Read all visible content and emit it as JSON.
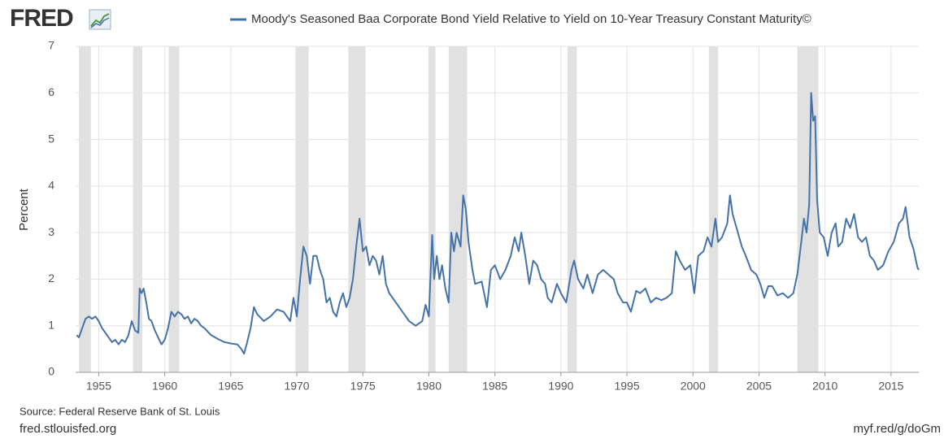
{
  "header": {
    "logo": "FRED"
  },
  "chart_data": {
    "type": "line",
    "title": "Moody's Seasoned Baa Corporate Bond Yield Relative to Yield on 10-Year Treasury Constant Maturity©",
    "y_label": "Percent",
    "x": [
      1953.33,
      1953.5,
      1953.75,
      1954.0,
      1954.25,
      1954.5,
      1954.75,
      1955.0,
      1955.25,
      1955.5,
      1955.75,
      1956.0,
      1956.25,
      1956.5,
      1956.75,
      1957.0,
      1957.25,
      1957.5,
      1957.75,
      1958.0,
      1958.1,
      1958.25,
      1958.4,
      1958.6,
      1958.8,
      1959.0,
      1959.25,
      1959.5,
      1959.75,
      1960.0,
      1960.25,
      1960.5,
      1960.75,
      1961.0,
      1961.25,
      1961.5,
      1961.75,
      1962.0,
      1962.25,
      1962.5,
      1962.75,
      1963.0,
      1963.5,
      1964.0,
      1964.5,
      1965.0,
      1965.5,
      1965.8,
      1966.0,
      1966.2,
      1966.5,
      1966.75,
      1967.0,
      1967.5,
      1968.0,
      1968.5,
      1969.0,
      1969.5,
      1969.75,
      1970.0,
      1970.25,
      1970.5,
      1970.75,
      1971.0,
      1971.25,
      1971.5,
      1971.75,
      1972.0,
      1972.25,
      1972.5,
      1972.75,
      1973.0,
      1973.25,
      1973.5,
      1973.75,
      1974.0,
      1974.25,
      1974.5,
      1974.75,
      1975.0,
      1975.25,
      1975.5,
      1975.75,
      1976.0,
      1976.25,
      1976.5,
      1976.75,
      1977.0,
      1977.5,
      1978.0,
      1978.5,
      1979.0,
      1979.5,
      1979.75,
      1980.0,
      1980.25,
      1980.4,
      1980.6,
      1980.8,
      1981.0,
      1981.25,
      1981.5,
      1981.7,
      1981.9,
      1982.1,
      1982.4,
      1982.6,
      1982.8,
      1983.0,
      1983.3,
      1983.5,
      1984.0,
      1984.4,
      1984.7,
      1985.0,
      1985.4,
      1985.8,
      1986.2,
      1986.5,
      1986.8,
      1987.0,
      1987.3,
      1987.6,
      1987.9,
      1988.2,
      1988.5,
      1988.8,
      1989.0,
      1989.3,
      1989.7,
      1990.0,
      1990.4,
      1990.8,
      1991.0,
      1991.3,
      1991.7,
      1992.0,
      1992.4,
      1992.8,
      1993.2,
      1993.6,
      1994.0,
      1994.3,
      1994.7,
      1995.0,
      1995.3,
      1995.7,
      1996.0,
      1996.4,
      1996.8,
      1997.2,
      1997.6,
      1998.0,
      1998.4,
      1998.7,
      1999.0,
      1999.4,
      1999.8,
      2000.1,
      2000.4,
      2000.8,
      2001.1,
      2001.4,
      2001.7,
      2001.9,
      2002.2,
      2002.6,
      2002.8,
      2003.0,
      2003.4,
      2003.7,
      2004.0,
      2004.4,
      2004.8,
      2005.1,
      2005.4,
      2005.7,
      2006.0,
      2006.4,
      2006.8,
      2007.2,
      2007.6,
      2007.9,
      2008.2,
      2008.4,
      2008.6,
      2008.8,
      2008.95,
      2009.1,
      2009.25,
      2009.4,
      2009.6,
      2009.9,
      2010.2,
      2010.5,
      2010.8,
      2011.0,
      2011.3,
      2011.6,
      2011.9,
      2012.2,
      2012.5,
      2012.8,
      2013.1,
      2013.4,
      2013.7,
      2014.0,
      2014.4,
      2014.8,
      2015.2,
      2015.6,
      2015.9,
      2016.1,
      2016.4,
      2016.7,
      2017.0,
      2017.1
    ],
    "series": [
      {
        "name": "Moody's Seasoned Baa Corporate Bond Yield Relative to Yield on 10-Year Treasury Constant Maturity©",
        "color": "#4572a7",
        "values": [
          0.8,
          0.75,
          0.95,
          1.15,
          1.2,
          1.15,
          1.2,
          1.1,
          0.95,
          0.85,
          0.75,
          0.65,
          0.7,
          0.6,
          0.7,
          0.65,
          0.8,
          1.1,
          0.9,
          0.85,
          1.8,
          1.7,
          1.8,
          1.5,
          1.15,
          1.1,
          0.9,
          0.75,
          0.6,
          0.7,
          0.95,
          1.3,
          1.2,
          1.3,
          1.25,
          1.15,
          1.2,
          1.05,
          1.15,
          1.1,
          1.0,
          0.95,
          0.8,
          0.72,
          0.65,
          0.62,
          0.6,
          0.5,
          0.4,
          0.6,
          0.95,
          1.4,
          1.25,
          1.1,
          1.2,
          1.35,
          1.3,
          1.1,
          1.6,
          1.2,
          2.0,
          2.7,
          2.5,
          1.9,
          2.5,
          2.5,
          2.2,
          2.0,
          1.5,
          1.6,
          1.3,
          1.2,
          1.5,
          1.7,
          1.4,
          1.6,
          2.0,
          2.7,
          3.3,
          2.6,
          2.7,
          2.3,
          2.5,
          2.4,
          2.1,
          2.5,
          1.9,
          1.7,
          1.5,
          1.3,
          1.1,
          1.0,
          1.1,
          1.45,
          1.2,
          2.95,
          2.0,
          2.5,
          2.0,
          2.3,
          1.8,
          1.5,
          3.0,
          2.6,
          3.0,
          2.7,
          3.8,
          3.5,
          2.8,
          2.2,
          1.9,
          1.95,
          1.4,
          2.2,
          2.3,
          2.0,
          2.2,
          2.5,
          2.9,
          2.6,
          3.0,
          2.5,
          1.9,
          2.4,
          2.3,
          2.0,
          1.9,
          1.6,
          1.5,
          1.9,
          1.7,
          1.5,
          2.2,
          2.4,
          2.0,
          1.8,
          2.1,
          1.7,
          2.1,
          2.2,
          2.1,
          2.0,
          1.7,
          1.5,
          1.5,
          1.3,
          1.75,
          1.7,
          1.8,
          1.5,
          1.6,
          1.55,
          1.6,
          1.7,
          2.6,
          2.4,
          2.2,
          2.3,
          1.7,
          2.5,
          2.6,
          2.9,
          2.7,
          3.3,
          2.8,
          2.9,
          3.2,
          3.8,
          3.4,
          3.0,
          2.7,
          2.5,
          2.2,
          2.1,
          1.9,
          1.6,
          1.85,
          1.85,
          1.65,
          1.7,
          1.6,
          1.7,
          2.1,
          2.8,
          3.3,
          3.0,
          3.6,
          6.0,
          5.4,
          5.5,
          3.7,
          3.0,
          2.9,
          2.5,
          3.0,
          3.2,
          2.7,
          2.8,
          3.3,
          3.1,
          3.4,
          2.9,
          2.8,
          2.9,
          2.5,
          2.4,
          2.2,
          2.3,
          2.6,
          2.8,
          3.2,
          3.3,
          3.55,
          2.9,
          2.65,
          2.25,
          2.2
        ]
      }
    ],
    "recessions": [
      [
        1953.5,
        1954.4
      ],
      [
        1957.6,
        1958.3
      ],
      [
        1960.3,
        1961.1
      ],
      [
        1969.9,
        1970.9
      ],
      [
        1973.9,
        1975.2
      ],
      [
        1980.0,
        1980.5
      ],
      [
        1981.5,
        1982.9
      ],
      [
        1990.5,
        1991.2
      ],
      [
        2001.2,
        2001.9
      ],
      [
        2007.9,
        2009.5
      ]
    ],
    "xlim": [
      1953.25,
      2017.1
    ],
    "xticks": [
      1955,
      1960,
      1965,
      1970,
      1975,
      1980,
      1985,
      1990,
      1995,
      2000,
      2005,
      2010,
      2015
    ],
    "ylim": [
      0,
      7
    ],
    "yticks": [
      0,
      1,
      2,
      3,
      4,
      5,
      6,
      7
    ],
    "grid": true
  },
  "footer": {
    "source": "Source: Federal Reserve Bank of St. Louis",
    "site": "fred.stlouisfed.org",
    "link": "myf.red/g/doGm"
  }
}
